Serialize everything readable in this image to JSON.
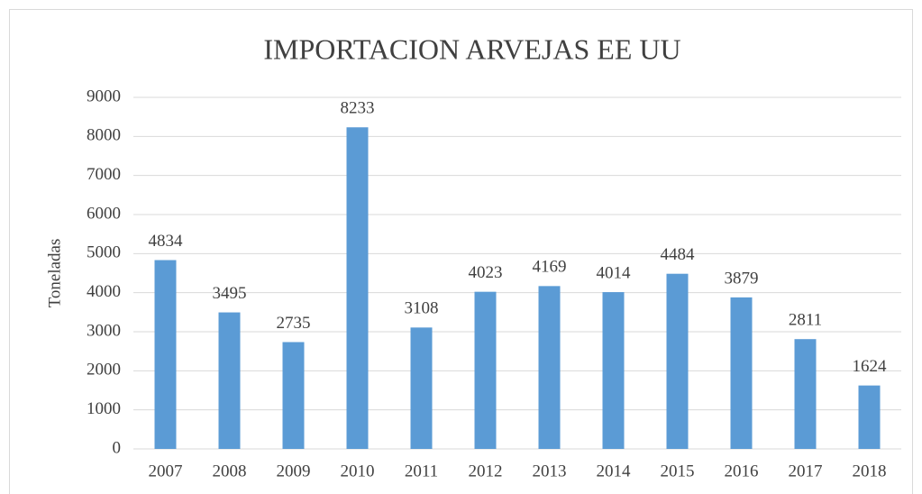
{
  "chart_data": {
    "type": "bar",
    "title": "IMPORTACION ARVEJAS EE UU",
    "y_label": "Toneladas",
    "categories": [
      "2007",
      "2008",
      "2009",
      "2010",
      "2011",
      "2012",
      "2013",
      "2014",
      "2015",
      "2016",
      "2017",
      "2018"
    ],
    "values": [
      4834,
      3495,
      2735,
      8233,
      3108,
      4023,
      4169,
      4014,
      4484,
      3879,
      2811,
      1624
    ],
    "color": "#5b9bd5",
    "ylim": [
      0,
      9000
    ],
    "yticks": [
      0,
      1000,
      2000,
      3000,
      4000,
      5000,
      6000,
      7000,
      8000,
      9000
    ],
    "grid": true
  }
}
